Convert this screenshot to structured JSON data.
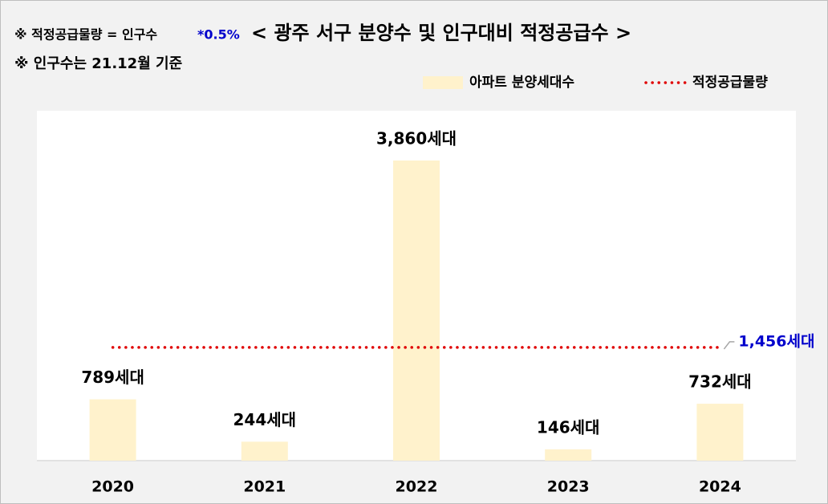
{
  "chart_data": {
    "type": "bar",
    "title": "< 광주 서구 분양수 및 인구대비 적정공급수 >",
    "notes": [
      "※ 적정공급물량 = 인구수",
      "*0.5%",
      "※ 인구수는 21.12월 기준"
    ],
    "categories": [
      "2020",
      "2021",
      "2022",
      "2023",
      "2024"
    ],
    "series": [
      {
        "name": "아파트 분양세대수",
        "type": "bar",
        "color": "#fff2cc",
        "values": [
          789,
          244,
          3860,
          146,
          732
        ],
        "value_labels": [
          "789세대",
          "244세대",
          "3,860세대",
          "146세대",
          "732세대"
        ]
      },
      {
        "name": "적정공급물량",
        "type": "line",
        "color": "#e00000",
        "values": [
          1456,
          1456,
          1456,
          1456,
          1456
        ],
        "value_labels": [
          null,
          null,
          null,
          null,
          "1,456세대"
        ]
      }
    ],
    "ylim": [
      0,
      4500
    ],
    "legend": "top-right"
  }
}
